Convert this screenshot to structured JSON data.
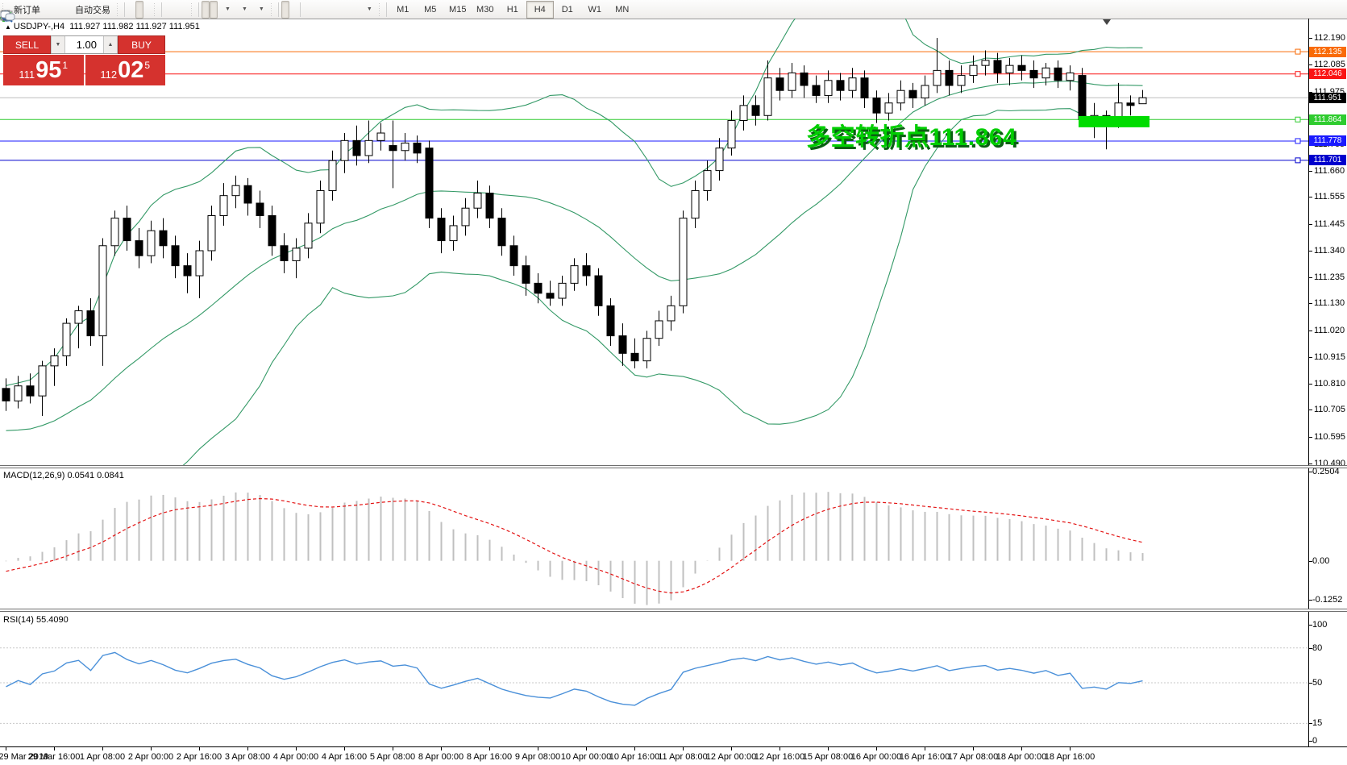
{
  "toolbar": {
    "new_order": "新订单",
    "autotrading": "自动交易",
    "timeframes": [
      "M1",
      "M5",
      "M15",
      "M30",
      "H1",
      "H4",
      "D1",
      "W1",
      "MN"
    ],
    "active_timeframe": "H4"
  },
  "symbol_bar": {
    "collapse_arrow": "▲",
    "symbol": "USDJPY-,H4",
    "ohlc": "111.927 111.982 111.927 111.951"
  },
  "trade_panel": {
    "sell_label": "SELL",
    "buy_label": "BUY",
    "volume": "1.00",
    "spinner_down": "▼",
    "spinner_up": "▲",
    "sell_price": {
      "prefix": "111",
      "big": "95",
      "sup": "1"
    },
    "buy_price": {
      "prefix": "112",
      "big": "02",
      "sup": "5"
    }
  },
  "annotation": {
    "text": "多空转折点111.864",
    "color": "#00CE00"
  },
  "price_axis": {
    "ticks": [
      112.19,
      112.085,
      111.975,
      111.765,
      111.66,
      111.555,
      111.445,
      111.34,
      111.235,
      111.13,
      111.02,
      110.915,
      110.81,
      110.705,
      110.595,
      110.49
    ],
    "levels": [
      {
        "label": "112.135",
        "price": 112.135,
        "line_color": "#F96B07",
        "badge_color": "#F96B07",
        "anchor": true
      },
      {
        "label": "112.046",
        "price": 112.046,
        "line_color": "#FA1414",
        "badge_color": "#FA1414",
        "anchor": true
      },
      {
        "label": "111.951",
        "price": 111.951,
        "line_color": "#BDBDBD",
        "badge_color": "#000000",
        "anchor": false
      },
      {
        "label": "111.864",
        "price": 111.864,
        "line_color": "#2FCC2F",
        "badge_color": "#2FCC2F",
        "anchor": true
      },
      {
        "label": "111.778",
        "price": 111.778,
        "line_color": "#1A1AFF",
        "badge_color": "#1A1AFF",
        "anchor": true
      },
      {
        "label": "111.701",
        "price": 111.701,
        "line_color": "#0000CD",
        "badge_color": "#0000CD",
        "anchor": true
      }
    ]
  },
  "chart_data": {
    "type": "candlestick",
    "symbol": "USDJPY-",
    "timeframe": "H4",
    "current_bar": {
      "open": 111.927,
      "high": 111.982,
      "low": 111.927,
      "close": 111.951
    },
    "ylim": [
      110.49,
      112.19
    ],
    "candles": [
      [
        110.79,
        110.83,
        110.7,
        110.74
      ],
      [
        110.74,
        110.84,
        110.71,
        110.8
      ],
      [
        110.8,
        110.85,
        110.73,
        110.76
      ],
      [
        110.76,
        110.9,
        110.68,
        110.88
      ],
      [
        110.88,
        110.95,
        110.8,
        110.92
      ],
      [
        110.92,
        111.07,
        110.88,
        111.05
      ],
      [
        111.05,
        111.12,
        110.95,
        111.1
      ],
      [
        111.1,
        111.15,
        110.96,
        111.0
      ],
      [
        111.0,
        111.39,
        110.88,
        111.36
      ],
      [
        111.36,
        111.5,
        111.32,
        111.47
      ],
      [
        111.47,
        111.52,
        111.34,
        111.38
      ],
      [
        111.38,
        111.43,
        111.27,
        111.32
      ],
      [
        111.32,
        111.46,
        111.29,
        111.42
      ],
      [
        111.42,
        111.47,
        111.31,
        111.36
      ],
      [
        111.36,
        111.4,
        111.23,
        111.28
      ],
      [
        111.28,
        111.33,
        111.17,
        111.24
      ],
      [
        111.24,
        111.38,
        111.15,
        111.34
      ],
      [
        111.34,
        111.52,
        111.3,
        111.48
      ],
      [
        111.48,
        111.61,
        111.44,
        111.56
      ],
      [
        111.56,
        111.64,
        111.51,
        111.6
      ],
      [
        111.6,
        111.63,
        111.48,
        111.53
      ],
      [
        111.53,
        111.58,
        111.43,
        111.48
      ],
      [
        111.48,
        111.52,
        111.32,
        111.36
      ],
      [
        111.36,
        111.41,
        111.25,
        111.3
      ],
      [
        111.3,
        111.39,
        111.23,
        111.35
      ],
      [
        111.35,
        111.49,
        111.31,
        111.45
      ],
      [
        111.45,
        111.62,
        111.41,
        111.58
      ],
      [
        111.58,
        111.74,
        111.54,
        111.7
      ],
      [
        111.7,
        111.81,
        111.65,
        111.78
      ],
      [
        111.78,
        111.84,
        111.68,
        111.72
      ],
      [
        111.72,
        111.86,
        111.69,
        111.78
      ],
      [
        111.78,
        111.85,
        111.74,
        111.81
      ],
      [
        111.76,
        111.86,
        111.59,
        111.74
      ],
      [
        111.74,
        111.81,
        111.7,
        111.77
      ],
      [
        111.77,
        111.8,
        111.69,
        111.73
      ],
      [
        111.75,
        111.78,
        111.43,
        111.47
      ],
      [
        111.47,
        111.51,
        111.33,
        111.38
      ],
      [
        111.38,
        111.48,
        111.34,
        111.44
      ],
      [
        111.44,
        111.55,
        111.4,
        111.51
      ],
      [
        111.51,
        111.62,
        111.47,
        111.57
      ],
      [
        111.57,
        111.6,
        111.43,
        111.47
      ],
      [
        111.47,
        111.51,
        111.32,
        111.36
      ],
      [
        111.36,
        111.4,
        111.24,
        111.28
      ],
      [
        111.28,
        111.32,
        111.16,
        111.21
      ],
      [
        111.21,
        111.25,
        111.13,
        111.17
      ],
      [
        111.17,
        111.22,
        111.12,
        111.15
      ],
      [
        111.15,
        111.24,
        111.12,
        111.21
      ],
      [
        111.21,
        111.31,
        111.18,
        111.28
      ],
      [
        111.28,
        111.33,
        111.2,
        111.24
      ],
      [
        111.24,
        111.27,
        111.08,
        111.12
      ],
      [
        111.12,
        111.15,
        110.96,
        111.0
      ],
      [
        111.0,
        111.05,
        110.88,
        110.93
      ],
      [
        110.93,
        110.99,
        110.87,
        110.9
      ],
      [
        110.9,
        111.02,
        110.87,
        110.99
      ],
      [
        110.99,
        111.1,
        110.96,
        111.06
      ],
      [
        111.06,
        111.16,
        111.02,
        111.12
      ],
      [
        111.12,
        111.5,
        111.09,
        111.47
      ],
      [
        111.47,
        111.62,
        111.43,
        111.58
      ],
      [
        111.58,
        111.7,
        111.54,
        111.66
      ],
      [
        111.66,
        111.79,
        111.62,
        111.75
      ],
      [
        111.75,
        111.9,
        111.72,
        111.86
      ],
      [
        111.86,
        111.96,
        111.82,
        111.92
      ],
      [
        111.92,
        111.96,
        111.84,
        111.88
      ],
      [
        111.88,
        112.1,
        111.86,
        112.03
      ],
      [
        112.03,
        112.07,
        111.94,
        111.98
      ],
      [
        111.98,
        112.09,
        111.95,
        112.05
      ],
      [
        112.05,
        112.08,
        111.95,
        112.0
      ],
      [
        112.0,
        112.04,
        111.93,
        111.96
      ],
      [
        111.96,
        112.06,
        111.93,
        112.02
      ],
      [
        112.02,
        112.05,
        111.94,
        111.98
      ],
      [
        111.98,
        112.07,
        111.95,
        112.03
      ],
      [
        112.03,
        112.06,
        111.91,
        111.95
      ],
      [
        111.95,
        111.98,
        111.85,
        111.89
      ],
      [
        111.89,
        111.97,
        111.86,
        111.93
      ],
      [
        111.93,
        112.02,
        111.9,
        111.98
      ],
      [
        111.98,
        112.01,
        111.91,
        111.95
      ],
      [
        111.95,
        112.04,
        111.92,
        112.0
      ],
      [
        112.0,
        112.19,
        111.97,
        112.06
      ],
      [
        112.06,
        112.1,
        111.96,
        112.0
      ],
      [
        112.0,
        112.08,
        111.97,
        112.04
      ],
      [
        112.04,
        112.12,
        112.01,
        112.08
      ],
      [
        112.08,
        112.14,
        112.04,
        112.1
      ],
      [
        112.1,
        112.13,
        112.01,
        112.05
      ],
      [
        112.05,
        112.11,
        112.0,
        112.08
      ],
      [
        112.08,
        112.12,
        112.02,
        112.06
      ],
      [
        112.06,
        112.1,
        111.99,
        112.03
      ],
      [
        112.03,
        112.09,
        112.0,
        112.07
      ],
      [
        112.07,
        112.1,
        111.99,
        112.02
      ],
      [
        112.02,
        112.08,
        111.98,
        112.05
      ],
      [
        112.04,
        112.07,
        111.85,
        111.864
      ],
      [
        111.864,
        111.93,
        111.79,
        111.88
      ],
      [
        111.88,
        111.9,
        111.745,
        111.85
      ],
      [
        111.85,
        112.01,
        111.83,
        111.93
      ],
      [
        111.93,
        111.96,
        111.88,
        111.92
      ],
      [
        111.927,
        111.982,
        111.927,
        111.951
      ]
    ],
    "warmup_closes": [
      110.82,
      110.75,
      110.68,
      110.6,
      110.55,
      110.5,
      110.52,
      110.48,
      110.52,
      110.55,
      110.53,
      110.58,
      110.62,
      110.6,
      110.65,
      110.68,
      110.66,
      110.7,
      110.74,
      110.78
    ],
    "time_labels": [
      [
        0,
        "29 Mar 2019"
      ],
      [
        4,
        "29 Mar 16:00"
      ],
      [
        8,
        "1 Apr 08:00"
      ],
      [
        12,
        "2 Apr 00:00"
      ],
      [
        16,
        "2 Apr 16:00"
      ],
      [
        20,
        "3 Apr 08:00"
      ],
      [
        24,
        "4 Apr 00:00"
      ],
      [
        28,
        "4 Apr 16:00"
      ],
      [
        32,
        "5 Apr 08:00"
      ],
      [
        36,
        "8 Apr 00:00"
      ],
      [
        40,
        "8 Apr 16:00"
      ],
      [
        44,
        "9 Apr 08:00"
      ],
      [
        48,
        "10 Apr 00:00"
      ],
      [
        52,
        "10 Apr 16:00"
      ],
      [
        56,
        "11 Apr 08:00"
      ],
      [
        60,
        "12 Apr 00:00"
      ],
      [
        64,
        "12 Apr 16:00"
      ],
      [
        68,
        "15 Apr 08:00"
      ],
      [
        72,
        "16 Apr 00:00"
      ],
      [
        76,
        "16 Apr 16:00"
      ],
      [
        80,
        "17 Apr 08:00"
      ],
      [
        84,
        "18 Apr 00:00"
      ],
      [
        88,
        "18 Apr 16:00"
      ]
    ],
    "highlight_box": {
      "bar_start": 89,
      "bar_end": 94,
      "price_top": 111.878,
      "price_bottom": 111.833,
      "color": "#00DC00"
    },
    "indicators": {
      "bollinger": {
        "period": 20,
        "deviation": 2,
        "color": "#339966"
      },
      "macd": {
        "label": "MACD(12,26,9) 0.0541 0.0841",
        "value": 0.0541,
        "signal": 0.0841,
        "axis_labels": [
          "0.2504",
          "0.00",
          "-0.1252"
        ],
        "max": 0.2504,
        "min": -0.1252,
        "histogram_color": "#C0C0C0",
        "signal_color": "#E31212"
      },
      "rsi": {
        "label": "RSI(14) 55.4090",
        "value": 55.409,
        "axis_values": [
          100,
          80,
          50,
          15,
          0
        ],
        "level_lines": [
          80,
          50,
          15
        ],
        "color": "#4A90D9",
        "grid_color": "#C8C8C8"
      }
    }
  }
}
